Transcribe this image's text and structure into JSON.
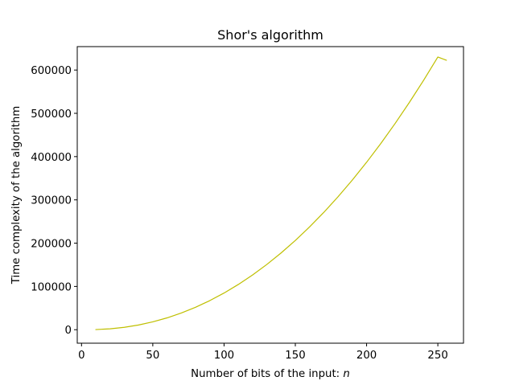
{
  "chart_data": {
    "type": "line",
    "title": "Shor's algorithm",
    "xlabel": "Number of bits of the input: ",
    "xlabel_var": "n",
    "ylabel": "Time complexity of the algorithm",
    "xlim": [
      -3,
      268
    ],
    "ylim": [
      -31150,
      654150
    ],
    "xticks": [
      0,
      50,
      100,
      150,
      200,
      250
    ],
    "yticks": [
      0,
      100000,
      200000,
      300000,
      400000,
      500000,
      600000
    ],
    "grid": false,
    "series": [
      {
        "color": "#bfbf00",
        "x": [
          10,
          20,
          30,
          40,
          50,
          60,
          70,
          80,
          90,
          100,
          110,
          120,
          130,
          140,
          150,
          160,
          170,
          180,
          190,
          200,
          210,
          220,
          230,
          240,
          250,
          256
        ],
        "y": [
          319,
          2063,
          5562,
          10894,
          18129,
          27327,
          38541,
          51822,
          67217,
          84768,
          104516,
          126500,
          150756,
          177318,
          206218,
          237490,
          271160,
          307258,
          345809,
          386842,
          430380,
          476448,
          525070,
          576269,
          630068,
          622592
        ]
      }
    ]
  }
}
